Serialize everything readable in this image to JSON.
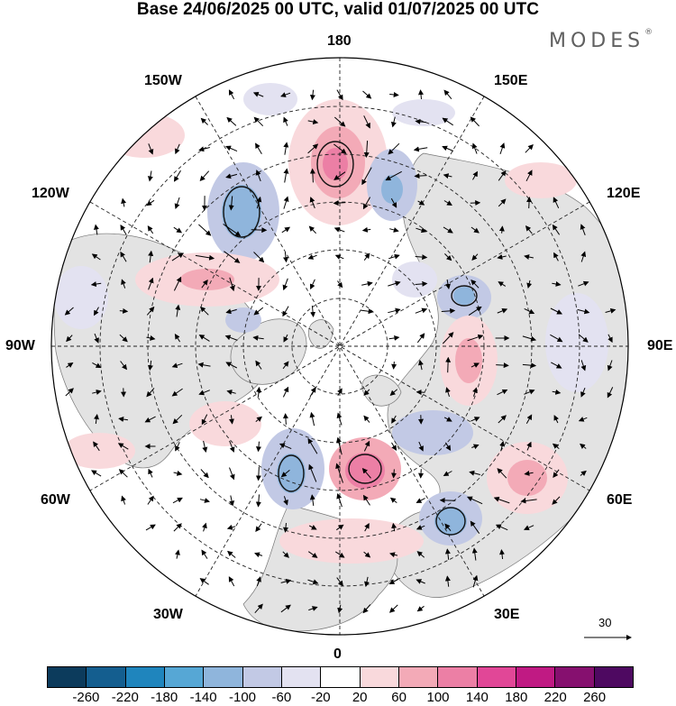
{
  "title": "Base 24/06/2025 00 UTC, valid 01/07/2025 00 UTC",
  "brand": {
    "text": "MODES",
    "mark": "®"
  },
  "longitude_labels": {
    "top": "180",
    "bottom": "0",
    "left": "90W",
    "right": "90E",
    "upper_left_1": "150W",
    "upper_left_2": "120W",
    "upper_right_1": "150E",
    "upper_right_2": "120E",
    "lower_left_1": "60W",
    "lower_left_2": "30W",
    "lower_right_1": "60E",
    "lower_right_2": "30E"
  },
  "reference_vector": {
    "value": "30"
  },
  "colorbar": {
    "colors": [
      "#0c3b5c",
      "#145e8f",
      "#1f85bd",
      "#56a7d5",
      "#8fb5dc",
      "#c2c9e5",
      "#e3e2f1",
      "#ffffff",
      "#f9d9dc",
      "#f3aab7",
      "#ec7fa5",
      "#e14797",
      "#c01a83",
      "#86106f",
      "#4e0961"
    ],
    "ticks": [
      "-260",
      "-220",
      "-180",
      "-140",
      "-100",
      "-60",
      "-20",
      "20",
      "60",
      "100",
      "140",
      "180",
      "220",
      "260"
    ]
  }
}
